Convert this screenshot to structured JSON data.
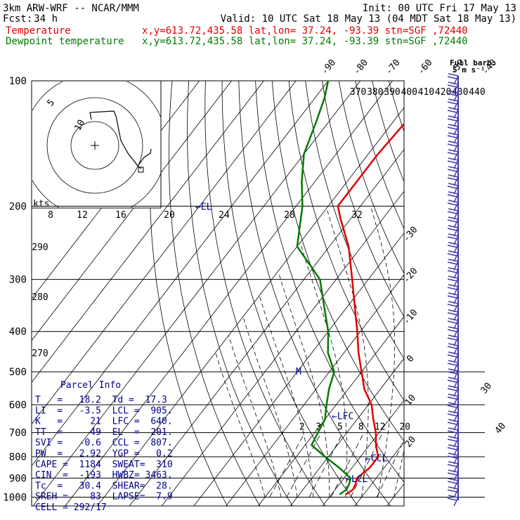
{
  "header": {
    "model": "3km ARW-WRF -- NCAR/MMM",
    "init": "Init: 00 UTC Fri 17 May 13",
    "fcst_label": "Fcst:",
    "fcst_value": "34 h",
    "valid": "Valid: 10 UTC Sat 18 May 13 (04 MDT Sat 18 May 13)",
    "temp_legend": "Temperature",
    "dew_legend": "Dewpoint temperature",
    "loc_line": "x,y=613.72,435.58   lat,lon= 37.24, -93.39   stn=SGF ,72440"
  },
  "colors": {
    "temperature": "#e00000",
    "dewpoint": "#007a00",
    "info": "#00008b",
    "barb": "#3b3bb0"
  },
  "wind": {
    "full_barb_label": "Full barb:",
    "full_barb_value": "5 m s⁻¹"
  },
  "chart_data": {
    "type": "line",
    "title": "",
    "pressure_levels": [
      100,
      200,
      300,
      400,
      500,
      600,
      700,
      800,
      900,
      1000
    ],
    "isotherm_labels": [
      "-90",
      "-80",
      "-70",
      "-60",
      "-50",
      "-40",
      "-30",
      "-20",
      "-10",
      "0",
      "10",
      "20",
      "30",
      "40"
    ],
    "theta_labels": [
      "370",
      "380",
      "390",
      "400",
      "410",
      "420",
      "430",
      "440",
      "290",
      "280",
      "270"
    ],
    "hodograph": {
      "speed_axis_label": "kts",
      "ticks": [
        "8",
        "12",
        "16",
        "20",
        "24",
        "28",
        "32"
      ],
      "ring_labels": [
        "5",
        "10"
      ]
    },
    "mixing_ratio_labels": [
      "2",
      "3",
      "5",
      "8",
      "12",
      "20"
    ],
    "markers": {
      "el": "EL",
      "lfc": "LFC",
      "ccl": "CCL",
      "lcl": "LCL",
      "m": "M"
    },
    "series": [
      {
        "name": "Temperature",
        "color": "#e00000",
        "points": [
          [
            985,
            14.5
          ],
          [
            960,
            15.5
          ],
          [
            930,
            15.0
          ],
          [
            900,
            14.0
          ],
          [
            850,
            15.5
          ],
          [
            800,
            15.5
          ],
          [
            750,
            12.0
          ],
          [
            700,
            9.0
          ],
          [
            650,
            5.0
          ],
          [
            600,
            1.0
          ],
          [
            550,
            -5.0
          ],
          [
            500,
            -10.0
          ],
          [
            450,
            -15.5
          ],
          [
            400,
            -21.0
          ],
          [
            350,
            -27.5
          ],
          [
            300,
            -35.0
          ],
          [
            250,
            -44.0
          ],
          [
            215,
            -53.0
          ],
          [
            200,
            -57.0
          ],
          [
            180,
            -57.0
          ],
          [
            150,
            -57.0
          ],
          [
            125,
            -56.0
          ],
          [
            110,
            -57.0
          ],
          [
            100,
            -58.0
          ]
        ]
      },
      {
        "name": "Dewpoint temperature",
        "color": "#007a00",
        "points": [
          [
            985,
            12.5
          ],
          [
            960,
            13.5
          ],
          [
            930,
            13.0
          ],
          [
            900,
            12.0
          ],
          [
            850,
            6.0
          ],
          [
            800,
            -1.0
          ],
          [
            750,
            -8.0
          ],
          [
            700,
            -9.0
          ],
          [
            650,
            -10.0
          ],
          [
            600,
            -13.0
          ],
          [
            550,
            -16.0
          ],
          [
            500,
            -18.5
          ],
          [
            450,
            -25.0
          ],
          [
            400,
            -30.0
          ],
          [
            350,
            -37.0
          ],
          [
            300,
            -45.0
          ],
          [
            250,
            -60.0
          ],
          [
            200,
            -68.0
          ],
          [
            175,
            -74.0
          ],
          [
            150,
            -80.0
          ],
          [
            125,
            -84.0
          ],
          [
            110,
            -87.0
          ],
          [
            100,
            -90.0
          ]
        ]
      }
    ]
  },
  "parcel_info": {
    "title": "Parcel Info",
    "rows": [
      "T   =   18.2  Td =  17.3",
      "LI  =   -3.5  LCL =  905.",
      "K   =     21  LFC =  640.",
      "TT  =     49  EL  =  201.",
      "SVI =   -0.6  CCL =  807.",
      "PW  =   2.92  YGP =   0.2",
      "CAPE =  1184  SWEAT=  310",
      "CIN  =  -193  HWBZ= 3463.",
      "Tc  =   30.4  SHEAR=  28.",
      "SREH =    83  LAPSE=  7.9",
      "CELL = 292/17"
    ]
  }
}
